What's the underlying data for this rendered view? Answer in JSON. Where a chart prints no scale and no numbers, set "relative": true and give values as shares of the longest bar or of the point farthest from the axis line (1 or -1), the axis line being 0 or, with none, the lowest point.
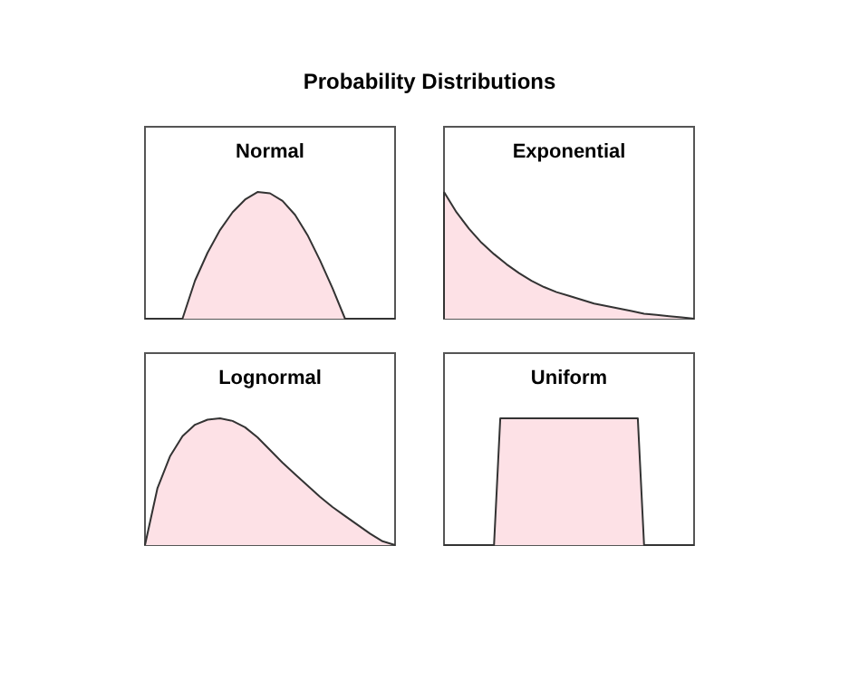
{
  "chart_data": [
    {
      "type": "area",
      "title": "Normal",
      "annotations": [
        "Probability Distributions"
      ],
      "relative": true,
      "color": "#fde1e6",
      "categories": [
        null,
        null,
        null,
        null,
        null,
        null,
        null,
        null,
        null,
        null,
        null,
        null,
        null,
        null,
        null,
        null,
        null,
        null,
        null,
        null,
        null
      ],
      "values": [
        0,
        0,
        0,
        0,
        0.3,
        0.52,
        0.7,
        0.84,
        0.94,
        1,
        0.99,
        0.93,
        0.82,
        0.66,
        0.46,
        0.24,
        0,
        0,
        0,
        0,
        0
      ]
    },
    {
      "type": "area",
      "title": "Exponential",
      "relative": true,
      "color": "#fde1e6",
      "categories": [
        null,
        null,
        null,
        null,
        null,
        null,
        null,
        null,
        null,
        null,
        null,
        null,
        null,
        null,
        null,
        null,
        null,
        null,
        null,
        null,
        null
      ],
      "values": [
        1,
        0.84,
        0.71,
        0.6,
        0.51,
        0.43,
        0.36,
        0.3,
        0.25,
        0.21,
        0.18,
        0.15,
        0.12,
        0.1,
        0.08,
        0.06,
        0.04,
        0.03,
        0.02,
        0.01,
        0
      ]
    },
    {
      "type": "area",
      "title": "Lognormal",
      "relative": true,
      "color": "#fde1e6",
      "categories": [
        null,
        null,
        null,
        null,
        null,
        null,
        null,
        null,
        null,
        null,
        null,
        null,
        null,
        null,
        null,
        null,
        null,
        null,
        null,
        null,
        null
      ],
      "values": [
        0,
        0.45,
        0.7,
        0.86,
        0.95,
        0.99,
        1,
        0.98,
        0.93,
        0.85,
        0.75,
        0.65,
        0.56,
        0.47,
        0.38,
        0.3,
        0.23,
        0.16,
        0.09,
        0.03,
        0
      ]
    },
    {
      "type": "area",
      "title": "Uniform",
      "relative": true,
      "color": "#fde1e6",
      "categories": [
        null,
        null,
        null,
        null,
        null,
        null,
        null,
        null,
        null,
        null,
        null,
        null,
        null,
        null,
        null,
        null,
        null,
        null,
        null,
        null,
        null,
        null,
        null,
        null,
        null,
        null,
        null,
        null,
        null,
        null,
        null,
        null,
        null,
        null,
        null,
        null,
        null,
        null,
        null,
        null,
        null
      ],
      "values": [
        0,
        0,
        0,
        0,
        0,
        0,
        0,
        0,
        0,
        1,
        1,
        1,
        1,
        1,
        1,
        1,
        1,
        1,
        1,
        1,
        1,
        1,
        1,
        1,
        1,
        1,
        1,
        1,
        1,
        1,
        1,
        1,
        0,
        0,
        0,
        0,
        0,
        0,
        0,
        0,
        0
      ]
    }
  ]
}
